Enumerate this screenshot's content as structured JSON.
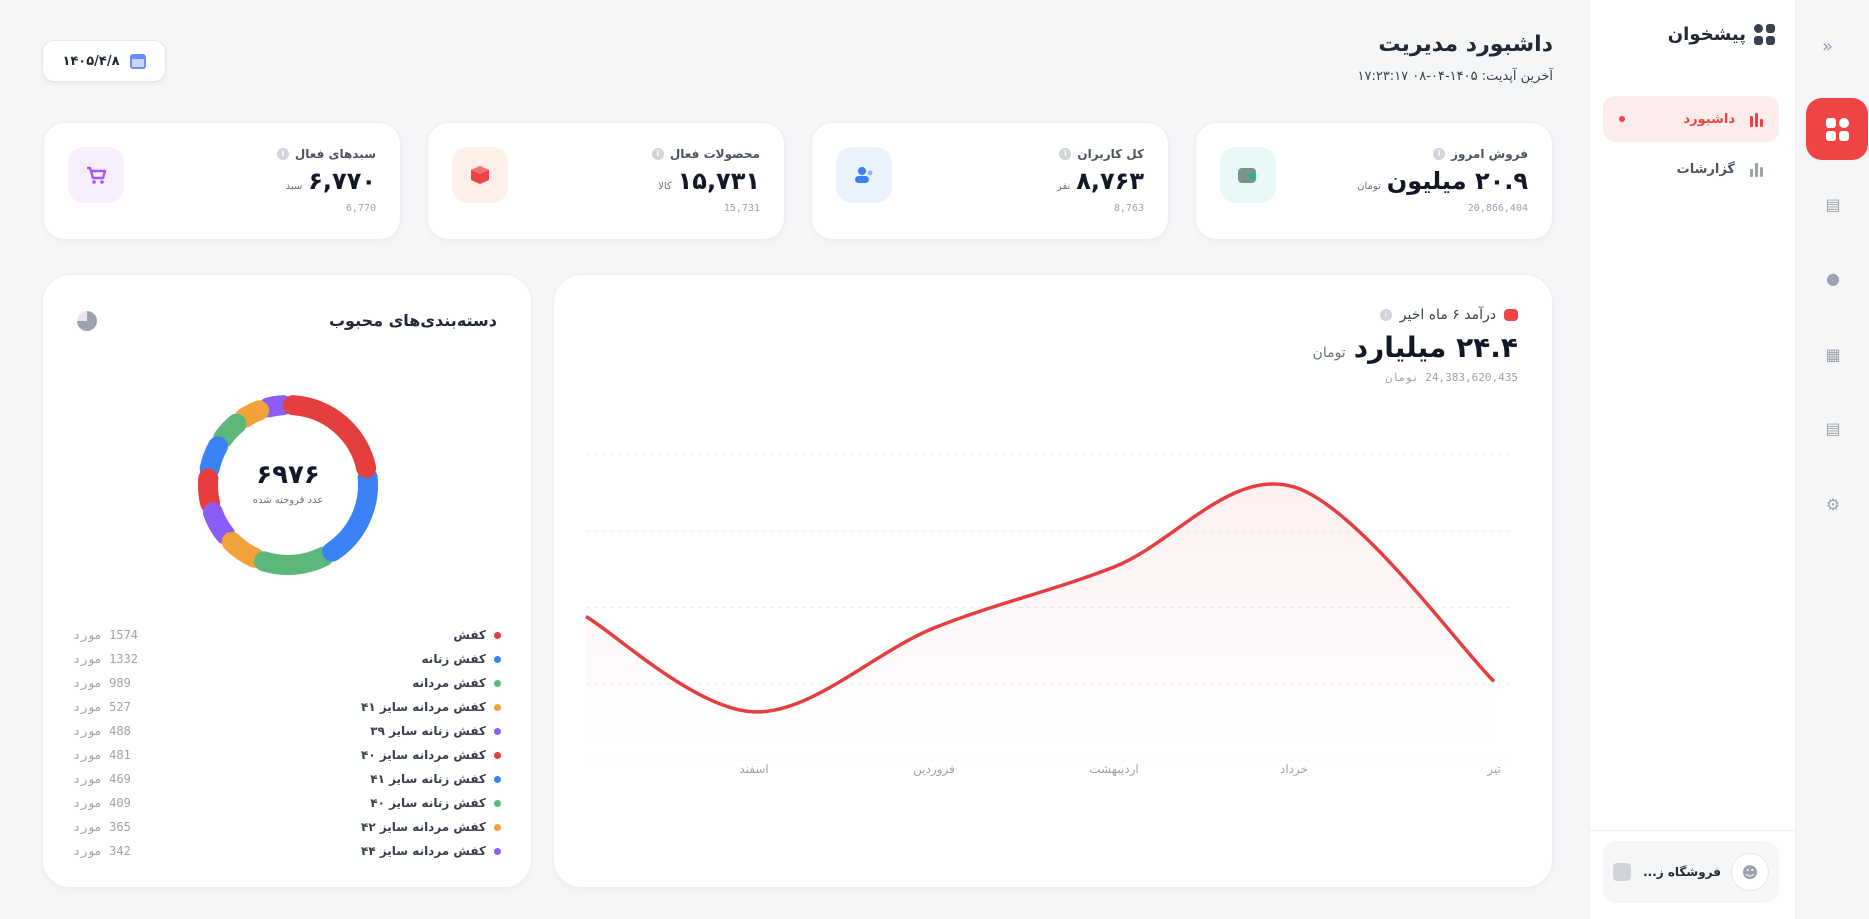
{
  "rail": {
    "icons": [
      "collapse-icon",
      "dashboard-icon",
      "bag-icon",
      "users-icon",
      "store-icon",
      "document-icon",
      "settings-icon"
    ]
  },
  "sidebar": {
    "brand": "پیشخوان",
    "items": [
      {
        "label": "داشبورد",
        "active": true
      },
      {
        "label": "گزارشات",
        "active": false
      }
    ],
    "store_name": "فروشگاه ز..."
  },
  "header": {
    "title": "داشبورد مدیریت",
    "last_update": "آخرین آپدیت: ۱۴۰۵-۰۴-۰۸ ۱۷:۲۳:۱۷",
    "date": "۱۴۰۵/۴/۸"
  },
  "stats": [
    {
      "label": "فروش امروز",
      "value": "۲۰.۹ میلیون",
      "unit": "تومان",
      "raw": "20,866,404",
      "icon": "wallet-icon",
      "color": "#14b8a6",
      "bg": "#e8f8f6"
    },
    {
      "label": "کل کاربران",
      "value": "۸,۷۶۳",
      "unit": "نفر",
      "raw": "8,763",
      "icon": "users-icon",
      "color": "#3b82f6",
      "bg": "#eaf2fe"
    },
    {
      "label": "محصولات فعال",
      "value": "۱۵,۷۳۱",
      "unit": "کالا",
      "raw": "15,731",
      "icon": "box-icon",
      "color": "#ef4444",
      "bg": "#fef0e8"
    },
    {
      "label": "سبدهای فعال",
      "value": "۶,۷۷۰",
      "unit": "سبد",
      "raw": "6,770",
      "icon": "cart-icon",
      "color": "#a855f7",
      "bg": "#f7eefe"
    }
  ],
  "revenue": {
    "label": "درآمد ۶ ماه اخیر",
    "value": "۲۴.۴ میلیارد",
    "unit": "تومان",
    "raw": "24,383,620,435 تومان"
  },
  "categories": {
    "title": "دسته‌بندی‌های محبوب",
    "center_value": "۶۹۷۶",
    "center_label": "عدد فروخته شده",
    "items": [
      {
        "name": "کفش",
        "count": "1574 مورد",
        "color": "#e53e3e"
      },
      {
        "name": "کفش زنانه",
        "count": "1332 مورد",
        "color": "#3b82f6"
      },
      {
        "name": "کفش مردانه",
        "count": "989 مورد",
        "color": "#5cb87a"
      },
      {
        "name": "کفش مردانه سایز ۴۱",
        "count": "527 مورد",
        "color": "#f3a13a"
      },
      {
        "name": "کفش زنانه سایز ۳۹",
        "count": "488 مورد",
        "color": "#8b5cf6"
      },
      {
        "name": "کفش مردانه سایز ۴۰",
        "count": "481 مورد",
        "color": "#e53e3e"
      },
      {
        "name": "کفش زنانه سایز ۴۱",
        "count": "469 مورد",
        "color": "#3b82f6"
      },
      {
        "name": "کفش زنانه سایز ۴۰",
        "count": "409 مورد",
        "color": "#5cb87a"
      },
      {
        "name": "کفش مردانه سایز ۴۲",
        "count": "365 مورد",
        "color": "#f3a13a"
      },
      {
        "name": "کفش مردانه سایز ۴۴",
        "count": "342 مورد",
        "color": "#8b5cf6"
      }
    ]
  },
  "chart_data": [
    {
      "type": "line",
      "categories": [
        "اسفند",
        "فروردین",
        "اردیبهشت",
        "خرداد",
        "تیر"
      ],
      "series": [
        {
          "values": [
            1.0,
            3.2,
            4.8,
            6.9,
            1.8
          ]
        }
      ],
      "ylim": [
        0,
        8
      ],
      "grid": true,
      "color": "#e53e3e"
    },
    {
      "type": "pie",
      "categories": [
        "کفش",
        "کفش زنانه",
        "کفش مردانه",
        "کفش مردانه سایز ۴۱",
        "کفش زنانه سایز ۳۹",
        "کفش مردانه سایز ۴۰",
        "کفش زنانه سایز ۴۱",
        "کفش زنانه سایز ۴۰",
        "کفش مردانه سایز ۴۲",
        "کفش مردانه سایز ۴۴"
      ],
      "values": [
        1574,
        1332,
        989,
        527,
        488,
        481,
        469,
        409,
        365,
        342
      ],
      "colors": [
        "#e53e3e",
        "#3b82f6",
        "#5cb87a",
        "#f3a13a",
        "#8b5cf6",
        "#e53e3e",
        "#3b82f6",
        "#5cb87a",
        "#f3a13a",
        "#8b5cf6"
      ]
    }
  ]
}
